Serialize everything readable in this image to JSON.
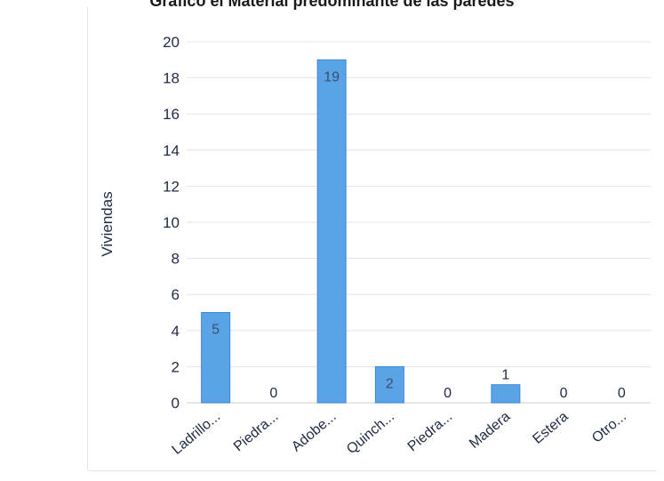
{
  "chart_data": {
    "type": "bar",
    "title": "Gráfico el Material predominante de las paredes",
    "ylabel": "Viviendas",
    "xlabel": "",
    "ylim": [
      0,
      20
    ],
    "ytick_step": 2,
    "grid": true,
    "categories": [
      "Ladrillo...",
      "Piedra...",
      "Adobe...",
      "Quinch...",
      "Piedra...",
      "Madera",
      "Estera",
      "Otro..."
    ],
    "values": [
      5,
      0,
      19,
      2,
      0,
      1,
      0,
      0
    ],
    "bar_color": "#5aa3e6",
    "bar_edge_color": "#3b86d6"
  }
}
